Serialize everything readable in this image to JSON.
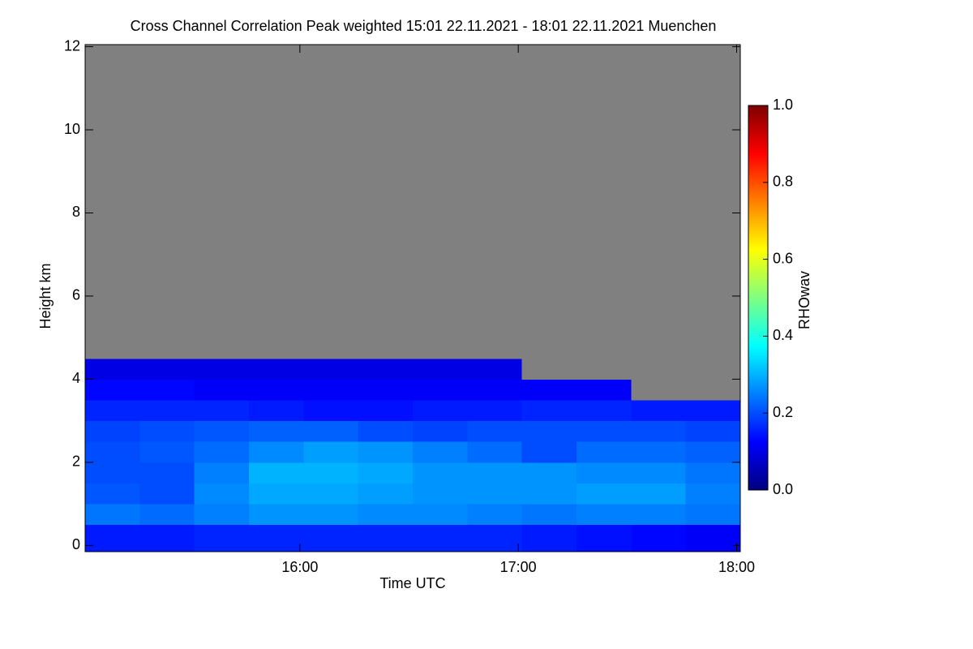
{
  "chart_data": {
    "type": "heatmap",
    "title": "Cross Channel Correlation Peak weighted   15:01 22.11.2021 - 18:01 22.11.2021 Muenchen",
    "xlabel": "Time UTC",
    "ylabel": "Height km",
    "colorbar_label": "RHOwav",
    "xlim": [
      901,
      1081
    ],
    "xticks": [
      {
        "value": 960,
        "label": "16:00"
      },
      {
        "value": 1020,
        "label": "17:00"
      },
      {
        "value": 1080,
        "label": "18:00"
      }
    ],
    "ylim": [
      -0.15,
      12.05
    ],
    "yticks": [
      0,
      2,
      4,
      6,
      8,
      10,
      12
    ],
    "clim": [
      0,
      1.0
    ],
    "cticks": [
      {
        "value": 0,
        "label": "0.0"
      },
      {
        "value": 0.2,
        "label": "0.2"
      },
      {
        "value": 0.4,
        "label": "0.4"
      },
      {
        "value": 0.6,
        "label": "0.6"
      },
      {
        "value": 0.8,
        "label": "0.8"
      },
      {
        "value": 1.0,
        "label": "1.0"
      }
    ],
    "colormap": [
      "#00007f",
      "#0000ff",
      "#0080ff",
      "#00ffff",
      "#80ff80",
      "#ffff00",
      "#ff8000",
      "#ff0000",
      "#7f0000"
    ],
    "nodata_color": "#808080",
    "x_edges": [
      901,
      916,
      931,
      946,
      961,
      976,
      991,
      1006,
      1021,
      1036,
      1051,
      1066,
      1081
    ],
    "y_edges": [
      -0.15,
      0.5,
      1,
      1.5,
      2,
      2.5,
      3,
      3.5,
      4,
      4.5,
      5,
      5.5,
      6,
      6.5,
      7,
      7.5,
      8,
      8.5,
      9,
      9.5,
      10,
      10.5,
      11,
      11.5,
      12.05
    ],
    "z": [
      [
        0.15,
        0.15,
        0.16,
        0.16,
        0.16,
        0.16,
        0.16,
        0.16,
        0.15,
        0.14,
        0.13,
        0.12
      ],
      [
        0.24,
        0.23,
        0.25,
        0.27,
        0.27,
        0.26,
        0.26,
        0.25,
        0.24,
        0.25,
        0.25,
        0.24
      ],
      [
        0.21,
        0.2,
        0.26,
        0.29,
        0.29,
        0.28,
        0.27,
        0.27,
        0.27,
        0.28,
        0.28,
        0.25
      ],
      [
        0.2,
        0.2,
        0.25,
        0.3,
        0.3,
        0.29,
        0.27,
        0.27,
        0.27,
        0.26,
        0.26,
        0.24
      ],
      [
        0.2,
        0.21,
        0.23,
        0.26,
        0.28,
        0.27,
        0.25,
        0.23,
        0.2,
        0.23,
        0.23,
        0.22
      ],
      [
        0.19,
        0.2,
        0.21,
        0.22,
        0.22,
        0.2,
        0.19,
        0.2,
        0.2,
        0.2,
        0.2,
        0.19
      ],
      [
        0.16,
        0.16,
        0.16,
        0.15,
        0.14,
        0.14,
        0.15,
        0.15,
        0.16,
        0.16,
        0.15,
        0.15
      ],
      [
        0.13,
        0.13,
        0.12,
        0.12,
        0.12,
        0.12,
        0.12,
        0.12,
        0.12,
        0.12,
        null,
        null
      ],
      [
        0.1,
        0.1,
        0.1,
        0.1,
        0.1,
        0.1,
        0.1,
        0.1,
        null,
        null,
        null,
        null
      ],
      [
        null,
        null,
        null,
        null,
        null,
        null,
        null,
        null,
        null,
        null,
        null,
        null
      ],
      [
        null,
        null,
        null,
        null,
        null,
        null,
        null,
        null,
        null,
        null,
        null,
        null
      ],
      [
        null,
        null,
        null,
        null,
        null,
        null,
        null,
        null,
        null,
        null,
        null,
        null
      ],
      [
        null,
        null,
        null,
        null,
        null,
        null,
        null,
        null,
        null,
        null,
        null,
        null
      ],
      [
        null,
        null,
        null,
        null,
        null,
        null,
        null,
        null,
        null,
        null,
        null,
        null
      ],
      [
        null,
        null,
        null,
        null,
        null,
        null,
        null,
        null,
        null,
        null,
        null,
        null
      ],
      [
        null,
        null,
        null,
        null,
        null,
        null,
        null,
        null,
        null,
        null,
        null,
        null
      ],
      [
        null,
        null,
        null,
        null,
        null,
        null,
        null,
        null,
        null,
        null,
        null,
        null
      ],
      [
        null,
        null,
        null,
        null,
        null,
        null,
        null,
        null,
        null,
        null,
        null,
        null
      ],
      [
        null,
        null,
        null,
        null,
        null,
        null,
        null,
        null,
        null,
        null,
        null,
        null
      ],
      [
        null,
        null,
        null,
        null,
        null,
        null,
        null,
        null,
        null,
        null,
        null,
        null
      ],
      [
        null,
        null,
        null,
        null,
        null,
        null,
        null,
        null,
        null,
        null,
        null,
        null
      ],
      [
        null,
        null,
        null,
        null,
        null,
        null,
        null,
        null,
        null,
        null,
        null,
        null
      ],
      [
        null,
        null,
        null,
        null,
        null,
        null,
        null,
        null,
        null,
        null,
        null,
        null
      ],
      [
        null,
        null,
        null,
        null,
        null,
        null,
        null,
        null,
        null,
        null,
        null,
        null
      ]
    ]
  }
}
